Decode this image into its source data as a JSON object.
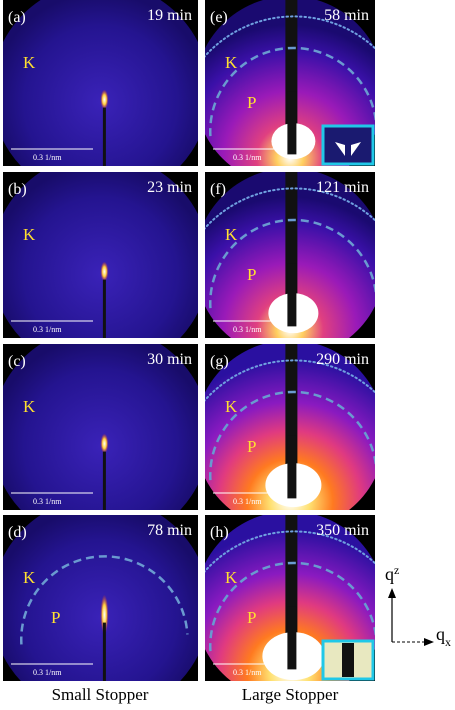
{
  "panels": [
    {
      "label": "(a)",
      "time": "19 min",
      "k": "K",
      "scale": "0.3 1/nm"
    },
    {
      "label": "(b)",
      "time": "23 min",
      "k": "K",
      "scale": "0.3 1/nm"
    },
    {
      "label": "(c)",
      "time": "30 min",
      "k": "K",
      "scale": "0.3 1/nm"
    },
    {
      "label": "(d)",
      "time": "78 min",
      "k": "K",
      "p": "P",
      "scale": "0.3 1/nm"
    },
    {
      "label": "(e)",
      "time": "58 min",
      "k": "K",
      "p": "P",
      "scale": "0.3 1/nm"
    },
    {
      "label": "(f)",
      "time": "121 min",
      "k": "K",
      "p": "P",
      "scale": "0.3 1/nm"
    },
    {
      "label": "(g)",
      "time": "290 min",
      "k": "K",
      "p": "P",
      "scale": "0.3 1/nm"
    },
    {
      "label": "(h)",
      "time": "350 min",
      "k": "K",
      "p": "P",
      "scale": "0.3 1/nm"
    }
  ],
  "captions": [
    "Small Stopper",
    "Large Stopper"
  ],
  "axes": {
    "vertical": {
      "symbol": "q",
      "sub": "z"
    },
    "horizontal": {
      "symbol": "q",
      "sub": "x"
    }
  }
}
